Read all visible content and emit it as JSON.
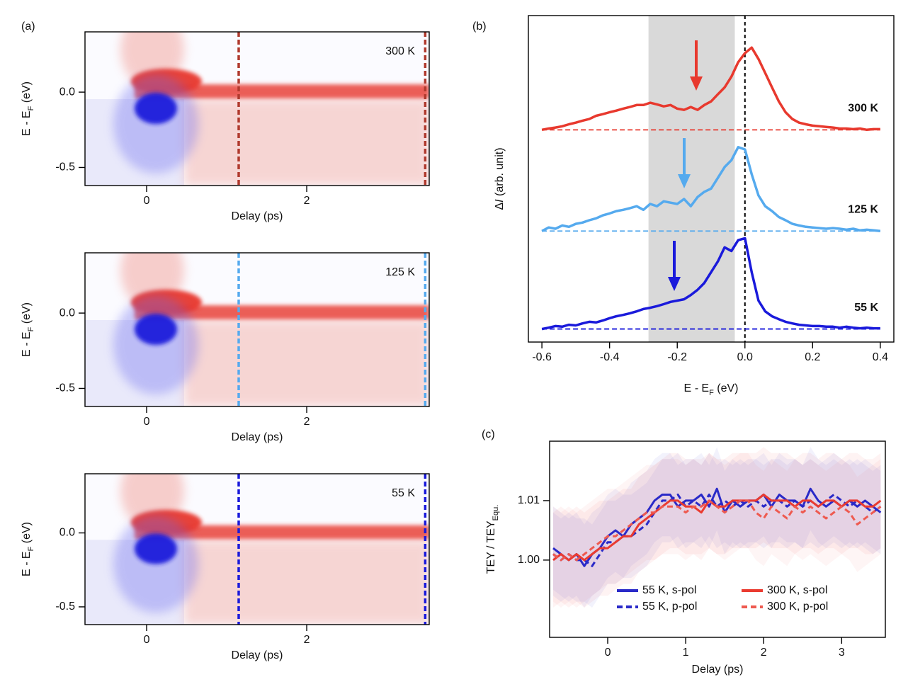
{
  "chart_data": [
    {
      "type": "heatmap",
      "panel": "(a)",
      "label": "300 K",
      "xlabel": "Delay (ps)",
      "ylabel": [
        "E",
        " - ",
        "E",
        "F",
        " (eV)"
      ],
      "xlim": [
        -0.77,
        3.53
      ],
      "xticks": [
        0,
        2
      ],
      "ylim": [
        -0.62,
        0.4
      ],
      "yticks": [
        {
          "value": 0,
          "label": "0.0"
        },
        -0.5
      ],
      "markers": [
        1.15,
        3.48
      ],
      "marker_color": "#b03a2e"
    },
    {
      "type": "heatmap",
      "label": "125 K",
      "xlabel": "Delay (ps)",
      "ylabel": [
        "E",
        " - ",
        "E",
        "F",
        " (eV)"
      ],
      "xlim": [
        -0.77,
        3.53
      ],
      "xticks": [
        0,
        2
      ],
      "ylim": [
        -0.62,
        0.4
      ],
      "yticks": [
        {
          "value": 0,
          "label": "0.0"
        },
        -0.5
      ],
      "markers": [
        1.15,
        3.48
      ],
      "marker_color": "#55aaee"
    },
    {
      "type": "heatmap",
      "label": "55 K",
      "xlabel": "Delay (ps)",
      "ylabel": [
        "E",
        " - ",
        "E",
        "F",
        " (eV)"
      ],
      "xlim": [
        -0.77,
        3.53
      ],
      "xticks": [
        0,
        2
      ],
      "ylim": [
        -0.62,
        0.4
      ],
      "yticks": [
        {
          "value": 0,
          "label": "0.0"
        },
        -0.5
      ],
      "markers": [
        1.15,
        3.48
      ],
      "marker_color": "#1a1adb"
    },
    {
      "type": "spectra",
      "panel": "(b)",
      "xlabel": [
        "E",
        " - ",
        "E",
        "F",
        " (eV)"
      ],
      "ylabel": [
        "Δ",
        "I",
        " (arb. unit)"
      ],
      "xlim": [
        -0.64,
        0.44
      ],
      "xticks": [
        -0.6,
        -0.4,
        -0.2,
        {
          "value": 0,
          "label": "0.0"
        },
        0.2,
        0.4
      ],
      "ylim": [
        0,
        10
      ],
      "shade": [
        -0.285,
        -0.03
      ],
      "vline": 0,
      "x": [
        -0.6,
        -0.58,
        -0.56,
        -0.54,
        -0.52,
        -0.5,
        -0.48,
        -0.46,
        -0.44,
        -0.42,
        -0.4,
        -0.38,
        -0.36,
        -0.34,
        -0.32,
        -0.3,
        -0.28,
        -0.26,
        -0.24,
        -0.22,
        -0.2,
        -0.18,
        -0.16,
        -0.14,
        -0.12,
        -0.1,
        -0.08,
        -0.06,
        -0.04,
        -0.02,
        0,
        0.02,
        0.04,
        0.06,
        0.08,
        0.1,
        0.12,
        0.14,
        0.16,
        0.18,
        0.2,
        0.22,
        0.24,
        0.26,
        0.28,
        0.3,
        0.32,
        0.34,
        0.36,
        0.38,
        0.4
      ],
      "series": [
        {
          "name": "300 K",
          "color": "#e8392e",
          "baseline": 6.5,
          "values": [
            6.5,
            6.54,
            6.57,
            6.61,
            6.67,
            6.72,
            6.78,
            6.83,
            6.93,
            6.98,
            7.04,
            7.09,
            7.15,
            7.2,
            7.26,
            7.26,
            7.33,
            7.28,
            7.22,
            7.26,
            7.15,
            7.11,
            7.2,
            7.11,
            7.26,
            7.37,
            7.59,
            7.8,
            8.13,
            8.57,
            8.85,
            9.02,
            8.67,
            8.24,
            7.8,
            7.37,
            7.04,
            6.83,
            6.72,
            6.67,
            6.63,
            6.61,
            6.59,
            6.57,
            6.54,
            6.54,
            6.52,
            6.54,
            6.5,
            6.52,
            6.52
          ]
        },
        {
          "name": "125 K",
          "color": "#55aaee",
          "baseline": 3.4,
          "values": [
            3.4,
            3.51,
            3.47,
            3.57,
            3.53,
            3.62,
            3.66,
            3.73,
            3.79,
            3.88,
            3.94,
            4.01,
            4.05,
            4.1,
            4.16,
            4.05,
            4.23,
            4.16,
            4.31,
            4.27,
            4.23,
            4.38,
            4.16,
            4.44,
            4.6,
            4.7,
            5.03,
            5.36,
            5.57,
            5.97,
            5.9,
            5.14,
            4.49,
            4.16,
            4.01,
            3.83,
            3.73,
            3.62,
            3.57,
            3.53,
            3.51,
            3.49,
            3.47,
            3.49,
            3.47,
            3.44,
            3.47,
            3.42,
            3.44,
            3.42,
            3.4
          ]
        },
        {
          "name": "55 K",
          "color": "#1a1adb",
          "baseline": 0.4,
          "values": [
            0.4,
            0.44,
            0.49,
            0.47,
            0.53,
            0.51,
            0.57,
            0.62,
            0.6,
            0.66,
            0.73,
            0.79,
            0.83,
            0.88,
            0.94,
            1.01,
            1.05,
            1.1,
            1.16,
            1.23,
            1.27,
            1.31,
            1.44,
            1.6,
            1.81,
            2.14,
            2.47,
            2.9,
            2.79,
            3.12,
            3.18,
            2.14,
            1.27,
            0.94,
            0.79,
            0.7,
            0.62,
            0.57,
            0.53,
            0.51,
            0.49,
            0.49,
            0.47,
            0.47,
            0.44,
            0.47,
            0.44,
            0.42,
            0.44,
            0.42,
            0.42
          ]
        }
      ]
    },
    {
      "type": "tey",
      "panel": "(c)",
      "xlabel": "Delay (ps)",
      "ylabel": [
        "TEY / TEY",
        "Equ."
      ],
      "xlim": [
        -0.745,
        3.56
      ],
      "xticks": [
        0,
        1,
        2,
        3
      ],
      "ylim": [
        0.987,
        1.02
      ],
      "yticks": [
        {
          "value": 1.0,
          "label": "1.00"
        },
        1.01
      ],
      "x": [
        -0.7,
        -0.6,
        -0.5,
        -0.4,
        -0.3,
        -0.2,
        -0.1,
        0,
        0.1,
        0.2,
        0.3,
        0.4,
        0.5,
        0.6,
        0.7,
        0.8,
        0.9,
        1,
        1.1,
        1.2,
        1.3,
        1.4,
        1.5,
        1.6,
        1.7,
        1.8,
        1.9,
        2,
        2.1,
        2.2,
        2.3,
        2.4,
        2.5,
        2.6,
        2.7,
        2.8,
        2.9,
        3,
        3.1,
        3.2,
        3.3,
        3.4,
        3.5
      ],
      "series": [
        {
          "name": "55 K,  s-pol",
          "color": "#2a2ac8",
          "dashed": false,
          "error": 0.007,
          "values": [
            1.002,
            1.001,
            1.0,
            1.001,
            0.999,
            1.001,
            1.002,
            1.004,
            1.005,
            1.004,
            1.006,
            1.007,
            1.008,
            1.01,
            1.011,
            1.011,
            1.009,
            1.01,
            1.01,
            1.011,
            1.009,
            1.012,
            1.008,
            1.01,
            1.009,
            1.01,
            1.01,
            1.011,
            1.009,
            1.011,
            1.01,
            1.01,
            1.009,
            1.012,
            1.01,
            1.009,
            1.01,
            1.009,
            1.01,
            1.009,
            1.01,
            1.009,
            1.008
          ]
        },
        {
          "name": "55 K,  p-pol",
          "color": "#2a2ac8",
          "dashed": true,
          "error": 0.007,
          "values": [
            1.001,
            1.0,
            1.001,
            1.0,
            1.0,
            0.999,
            1.001,
            1.003,
            1.003,
            1.004,
            1.004,
            1.005,
            1.006,
            1.008,
            1.01,
            1.01,
            1.011,
            1.009,
            1.01,
            1.009,
            1.011,
            1.009,
            1.01,
            1.009,
            1.01,
            1.009,
            1.01,
            1.009,
            1.01,
            1.01,
            1.009,
            1.01,
            1.009,
            1.01,
            1.009,
            1.01,
            1.011,
            1.01,
            1.009,
            1.01,
            1.009,
            1.008,
            1.009
          ]
        },
        {
          "name": "300 K, s-pol",
          "color": "#ea3b30",
          "dashed": false,
          "error": 0.008,
          "values": [
            1.0,
            1.001,
            1.0,
            1.001,
            1.0,
            1.001,
            1.002,
            1.002,
            1.003,
            1.004,
            1.004,
            1.006,
            1.007,
            1.008,
            1.009,
            1.01,
            1.01,
            1.009,
            1.009,
            1.008,
            1.01,
            1.009,
            1.009,
            1.01,
            1.01,
            1.01,
            1.01,
            1.011,
            1.01,
            1.01,
            1.01,
            1.009,
            1.01,
            1.01,
            1.009,
            1.01,
            1.01,
            1.009,
            1.01,
            1.01,
            1.009,
            1.009,
            1.01
          ]
        },
        {
          "name": "300 K, p-pol",
          "color": "#ee5a50",
          "dashed": true,
          "error": 0.008,
          "values": [
            1.001,
            1.0,
            1.001,
            1.0,
            1.001,
            1.002,
            1.003,
            1.004,
            1.004,
            1.005,
            1.006,
            1.007,
            1.008,
            1.008,
            1.009,
            1.009,
            1.009,
            1.008,
            1.009,
            1.009,
            1.01,
            1.009,
            1.008,
            1.009,
            1.01,
            1.01,
            1.008,
            1.007,
            1.009,
            1.008,
            1.007,
            1.009,
            1.008,
            1.009,
            1.008,
            1.007,
            1.008,
            1.009,
            1.008,
            1.006,
            1.007,
            1.008,
            1.009
          ]
        }
      ]
    }
  ]
}
